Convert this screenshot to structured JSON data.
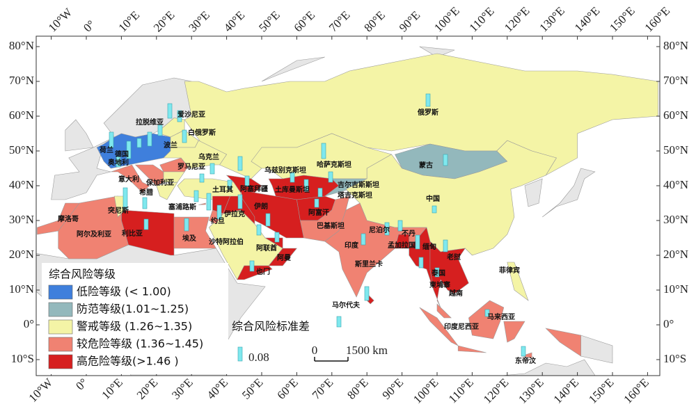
{
  "map": {
    "lon_ticks": [
      {
        "value": -10,
        "label": "10°W"
      },
      {
        "value": 0,
        "label": "0°"
      },
      {
        "value": 10,
        "label": "10°E"
      },
      {
        "value": 20,
        "label": "20°E"
      },
      {
        "value": 30,
        "label": "30°E"
      },
      {
        "value": 40,
        "label": "40°E"
      },
      {
        "value": 50,
        "label": "50°E"
      },
      {
        "value": 60,
        "label": "60°E"
      },
      {
        "value": 70,
        "label": "70°E"
      },
      {
        "value": 80,
        "label": "80°E"
      },
      {
        "value": 90,
        "label": "90°E"
      },
      {
        "value": 100,
        "label": "100°E"
      },
      {
        "value": 110,
        "label": "110°E"
      },
      {
        "value": 120,
        "label": "120°E"
      },
      {
        "value": 130,
        "label": "130°E"
      },
      {
        "value": 140,
        "label": "140°E"
      },
      {
        "value": 150,
        "label": "150°E"
      },
      {
        "value": 160,
        "label": "160°E"
      }
    ],
    "lat_ticks": [
      {
        "value": 80,
        "label": "80°N"
      },
      {
        "value": 70,
        "label": "70°N"
      },
      {
        "value": 60,
        "label": "60°N"
      },
      {
        "value": 50,
        "label": "50°N"
      },
      {
        "value": 40,
        "label": "40°N"
      },
      {
        "value": 30,
        "label": "30°N"
      },
      {
        "value": 20,
        "label": "20°N"
      },
      {
        "value": 10,
        "label": "10°N"
      },
      {
        "value": 0,
        "label": "0°"
      },
      {
        "value": -10,
        "label": "10°S"
      }
    ],
    "country_labels": [
      "俄罗斯",
      "爱沙尼亚",
      "拉脱维亚",
      "白俄罗斯",
      "波兰",
      "荷兰",
      "德国",
      "乌克兰",
      "奥地利",
      "罗马尼亚",
      "哈萨克斯坦",
      "蒙古",
      "乌兹别克斯坦",
      "意大利",
      "保加利亚",
      "吉尔吉斯斯坦",
      "希腊",
      "土耳其",
      "阿塞拜疆",
      "土库曼斯坦",
      "塔吉克斯坦",
      "中国",
      "突尼斯",
      "塞浦路斯",
      "伊朗",
      "阿富汗",
      "伊拉克",
      "约旦",
      "摩洛哥",
      "巴基斯坦",
      "尼泊尔",
      "不丹",
      "阿尔及利亚",
      "利比亚",
      "埃及",
      "沙特阿拉伯",
      "孟加拉国",
      "缅甸",
      "印度",
      "阿联酋",
      "老挝",
      "阿曼",
      "斯里兰卡",
      "菲律宾",
      "也门",
      "泰国",
      "柬埔寨",
      "越南",
      "马尔代夫",
      "马来西亚",
      "印度尼西亚",
      "东帝汶"
    ],
    "legend": {
      "title": "综合风险等级",
      "items": [
        {
          "label": "低险等级 (< 1.00)",
          "color": "#3f7fdc"
        },
        {
          "label": "防范等级(1.01~1.25)",
          "color": "#93b8bc"
        },
        {
          "label": "警戒等级 (1.26~1.35)",
          "color": "#f4f4a6"
        },
        {
          "label": "较危险等级 (1.36~1.45)",
          "color": "#f08272"
        },
        {
          "label": "高危险等级(>1.46 )",
          "color": "#d61f1f"
        }
      ]
    },
    "std_legend": {
      "title": "综合风险标准差",
      "value": 0.08,
      "color": "#7fe8ee"
    },
    "scale_bar": {
      "start": "0",
      "end": "1500 km"
    },
    "std_values": [
      0.072,
      0.064,
      0.04,
      0.088,
      0.06,
      0.05,
      0.068,
      0.056,
      0.08,
      0.06,
      0.052,
      0.06,
      0.048,
      0.072,
      0.064,
      0.084,
      0.06,
      0.08,
      0.052,
      0.1,
      0.06,
      0.088,
      0.064,
      0.06,
      0.12,
      0.072,
      0.064,
      0.096,
      0.08,
      0.08,
      0.06,
      0.06,
      0.072,
      0.056,
      0.048,
      0.06,
      0.08,
      0.064,
      0.072,
      0.06,
      0.08,
      0.06,
      0.052,
      0.068,
      0.04,
      0.056
    ]
  }
}
